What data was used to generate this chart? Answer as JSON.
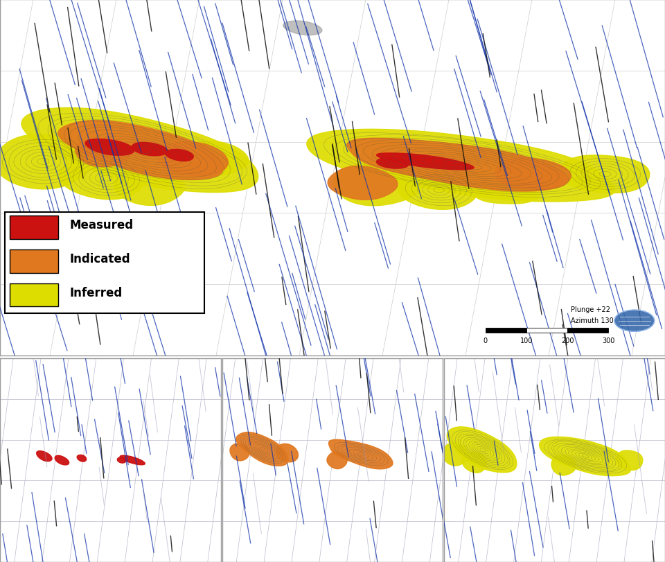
{
  "legend_items": [
    {
      "label": "Measured",
      "color": "#CC1111"
    },
    {
      "label": "Indicated",
      "color": "#E07820"
    },
    {
      "label": "Inferred",
      "color": "#DDDD00"
    }
  ],
  "scale_text": [
    "0",
    "100",
    "200",
    "300"
  ],
  "plunge_text": "Plunge +22",
  "azimuth_text": "Azimuth 130",
  "bg_color": "#FFFFFF",
  "grid_color": "#CCCCCC",
  "drillhole_color_blue": "#1133AA",
  "drillhole_color_black": "#111111",
  "drillhole_color_gray": "#9999BB",
  "inferred_color": "#DDDD00",
  "indicated_color": "#E07820",
  "measured_color": "#CC1111",
  "gray_patch_color": "#AAAAAA",
  "contour_color": "#555544"
}
